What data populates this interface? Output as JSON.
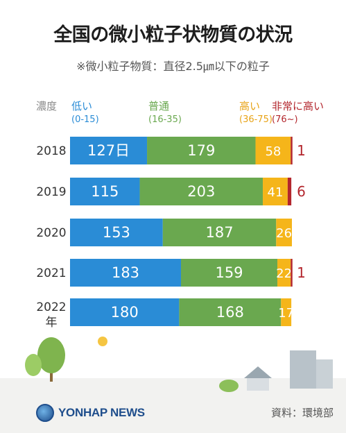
{
  "title": "全国の微小粒子状物質の状況",
  "subtitle": "※微小粒子物質：直径2.5㎛以下の粒子",
  "header": {
    "axis_label": "濃度",
    "categories": [
      {
        "label": "低い",
        "range": "(0-15)",
        "color": "#2a8cd6"
      },
      {
        "label": "普通",
        "range": "(16-35)",
        "color": "#6aa84f"
      },
      {
        "label": "高い",
        "range": "(36-75)",
        "color": "#f5b51a"
      },
      {
        "label": "非常に高い",
        "range": "(76~)",
        "color": "#b3262d"
      }
    ]
  },
  "footer": {
    "logo": "YONHAP NEWS",
    "source": "資料：環境部"
  },
  "chart_data": {
    "type": "bar",
    "orientation": "horizontal",
    "stacked": true,
    "unit_label": "日",
    "categories": [
      "2018",
      "2019",
      "2020",
      "2021",
      "2022"
    ],
    "category_suffix": "年",
    "series": [
      {
        "name": "低い",
        "color": "#2a8cd6",
        "values": [
          127,
          115,
          153,
          183,
          180
        ]
      },
      {
        "name": "普通",
        "color": "#6aa84f",
        "values": [
          179,
          203,
          187,
          159,
          168
        ]
      },
      {
        "name": "高い",
        "color": "#f5b51a",
        "values": [
          58,
          41,
          26,
          22,
          17
        ]
      },
      {
        "name": "非常に高い",
        "color": "#b3262d",
        "values": [
          1,
          6,
          0,
          1,
          0
        ]
      }
    ],
    "xlim": [
      0,
      366
    ]
  }
}
